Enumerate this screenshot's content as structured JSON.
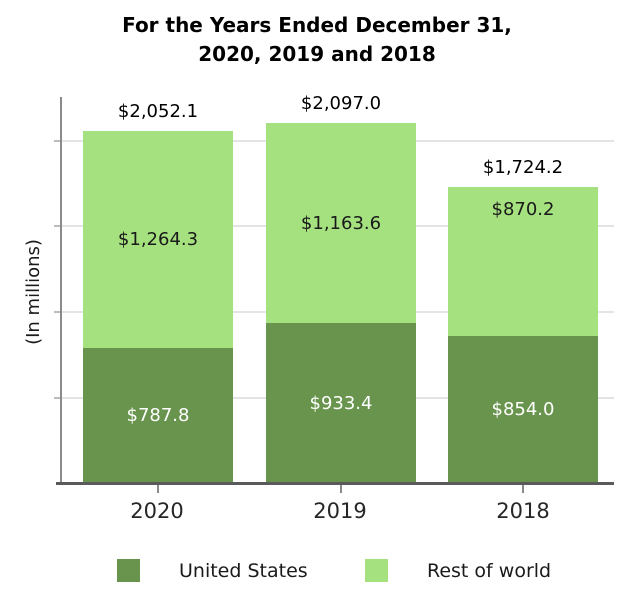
{
  "title": {
    "line1": "For the Years Ended December 31,",
    "line2": "2020, 2019 and 2018"
  },
  "ylabel": "(In millions)",
  "legend": [
    {
      "label": "United States",
      "color": "#68944d"
    },
    {
      "label": "Rest of world",
      "color": "#a5e17e"
    }
  ],
  "chart_data": {
    "type": "bar",
    "stacked": true,
    "title": "For the Years Ended December 31, 2020, 2019 and 2018",
    "ylabel": "(In millions)",
    "categories": [
      "2020",
      "2019",
      "2018"
    ],
    "series": [
      {
        "name": "United States",
        "color": "#68944d",
        "values": [
          787.8,
          933.4,
          854.0
        ]
      },
      {
        "name": "Rest of world",
        "color": "#a5e17e",
        "values": [
          1264.3,
          1163.6,
          870.2
        ]
      }
    ],
    "totals": [
      2052.1,
      2097.0,
      1724.2
    ],
    "labels": {
      "totals": [
        "$2,052.1",
        "$2,097.0",
        "$1,724.2"
      ],
      "united_states": [
        "$787.8",
        "$933.4",
        "$854.0"
      ],
      "rest_of_world": [
        "$1,264.3",
        "$1,163.6",
        "$870.2"
      ]
    },
    "ylim": [
      0,
      2250
    ],
    "gridlines": [
      500,
      1000,
      1500,
      2000
    ],
    "grid": "horizontal",
    "yticklabels_visible": false,
    "legend_position": "bottom"
  }
}
